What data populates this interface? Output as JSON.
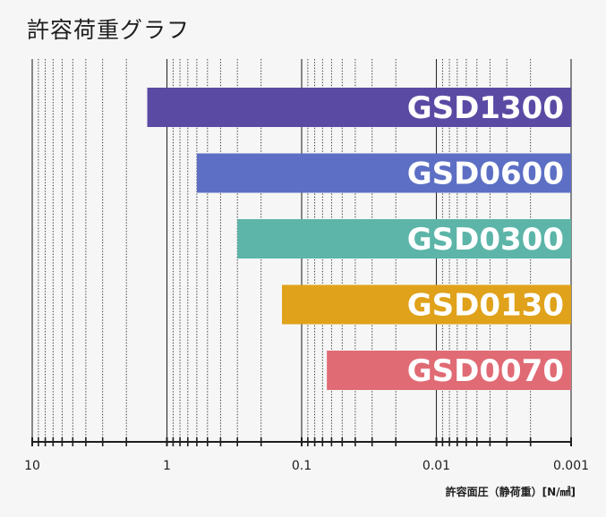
{
  "title": "許容荷重グラフ",
  "xlabel": "許容面圧（静荷重）[N/㎟]",
  "chart_data": {
    "type": "bar",
    "orientation": "horizontal",
    "title": "許容荷重グラフ",
    "xlabel": "許容面圧（静荷重）[N/㎟]",
    "ylabel": "",
    "x_scale": "log",
    "x_direction": "reversed",
    "xlim": [
      10,
      0.001
    ],
    "x_ticks": [
      10,
      1,
      0.1,
      0.01,
      0.001
    ],
    "x_tick_labels": [
      "10",
      "1",
      "0.1",
      "0.01",
      "0.001"
    ],
    "grid": true,
    "categories": [
      "GSD1300",
      "GSD0600",
      "GSD0300",
      "GSD0130",
      "GSD0070"
    ],
    "series": [
      {
        "values_range": [
          [
            1.4,
            0.001
          ],
          [
            0.6,
            0.001
          ],
          [
            0.3,
            0.001
          ],
          [
            0.14,
            0.001
          ],
          [
            0.065,
            0.001
          ]
        ]
      }
    ],
    "colors": [
      "#5b4aa4",
      "#5c6fc4",
      "#5cb5a8",
      "#e0a21b",
      "#e06b74"
    ]
  }
}
